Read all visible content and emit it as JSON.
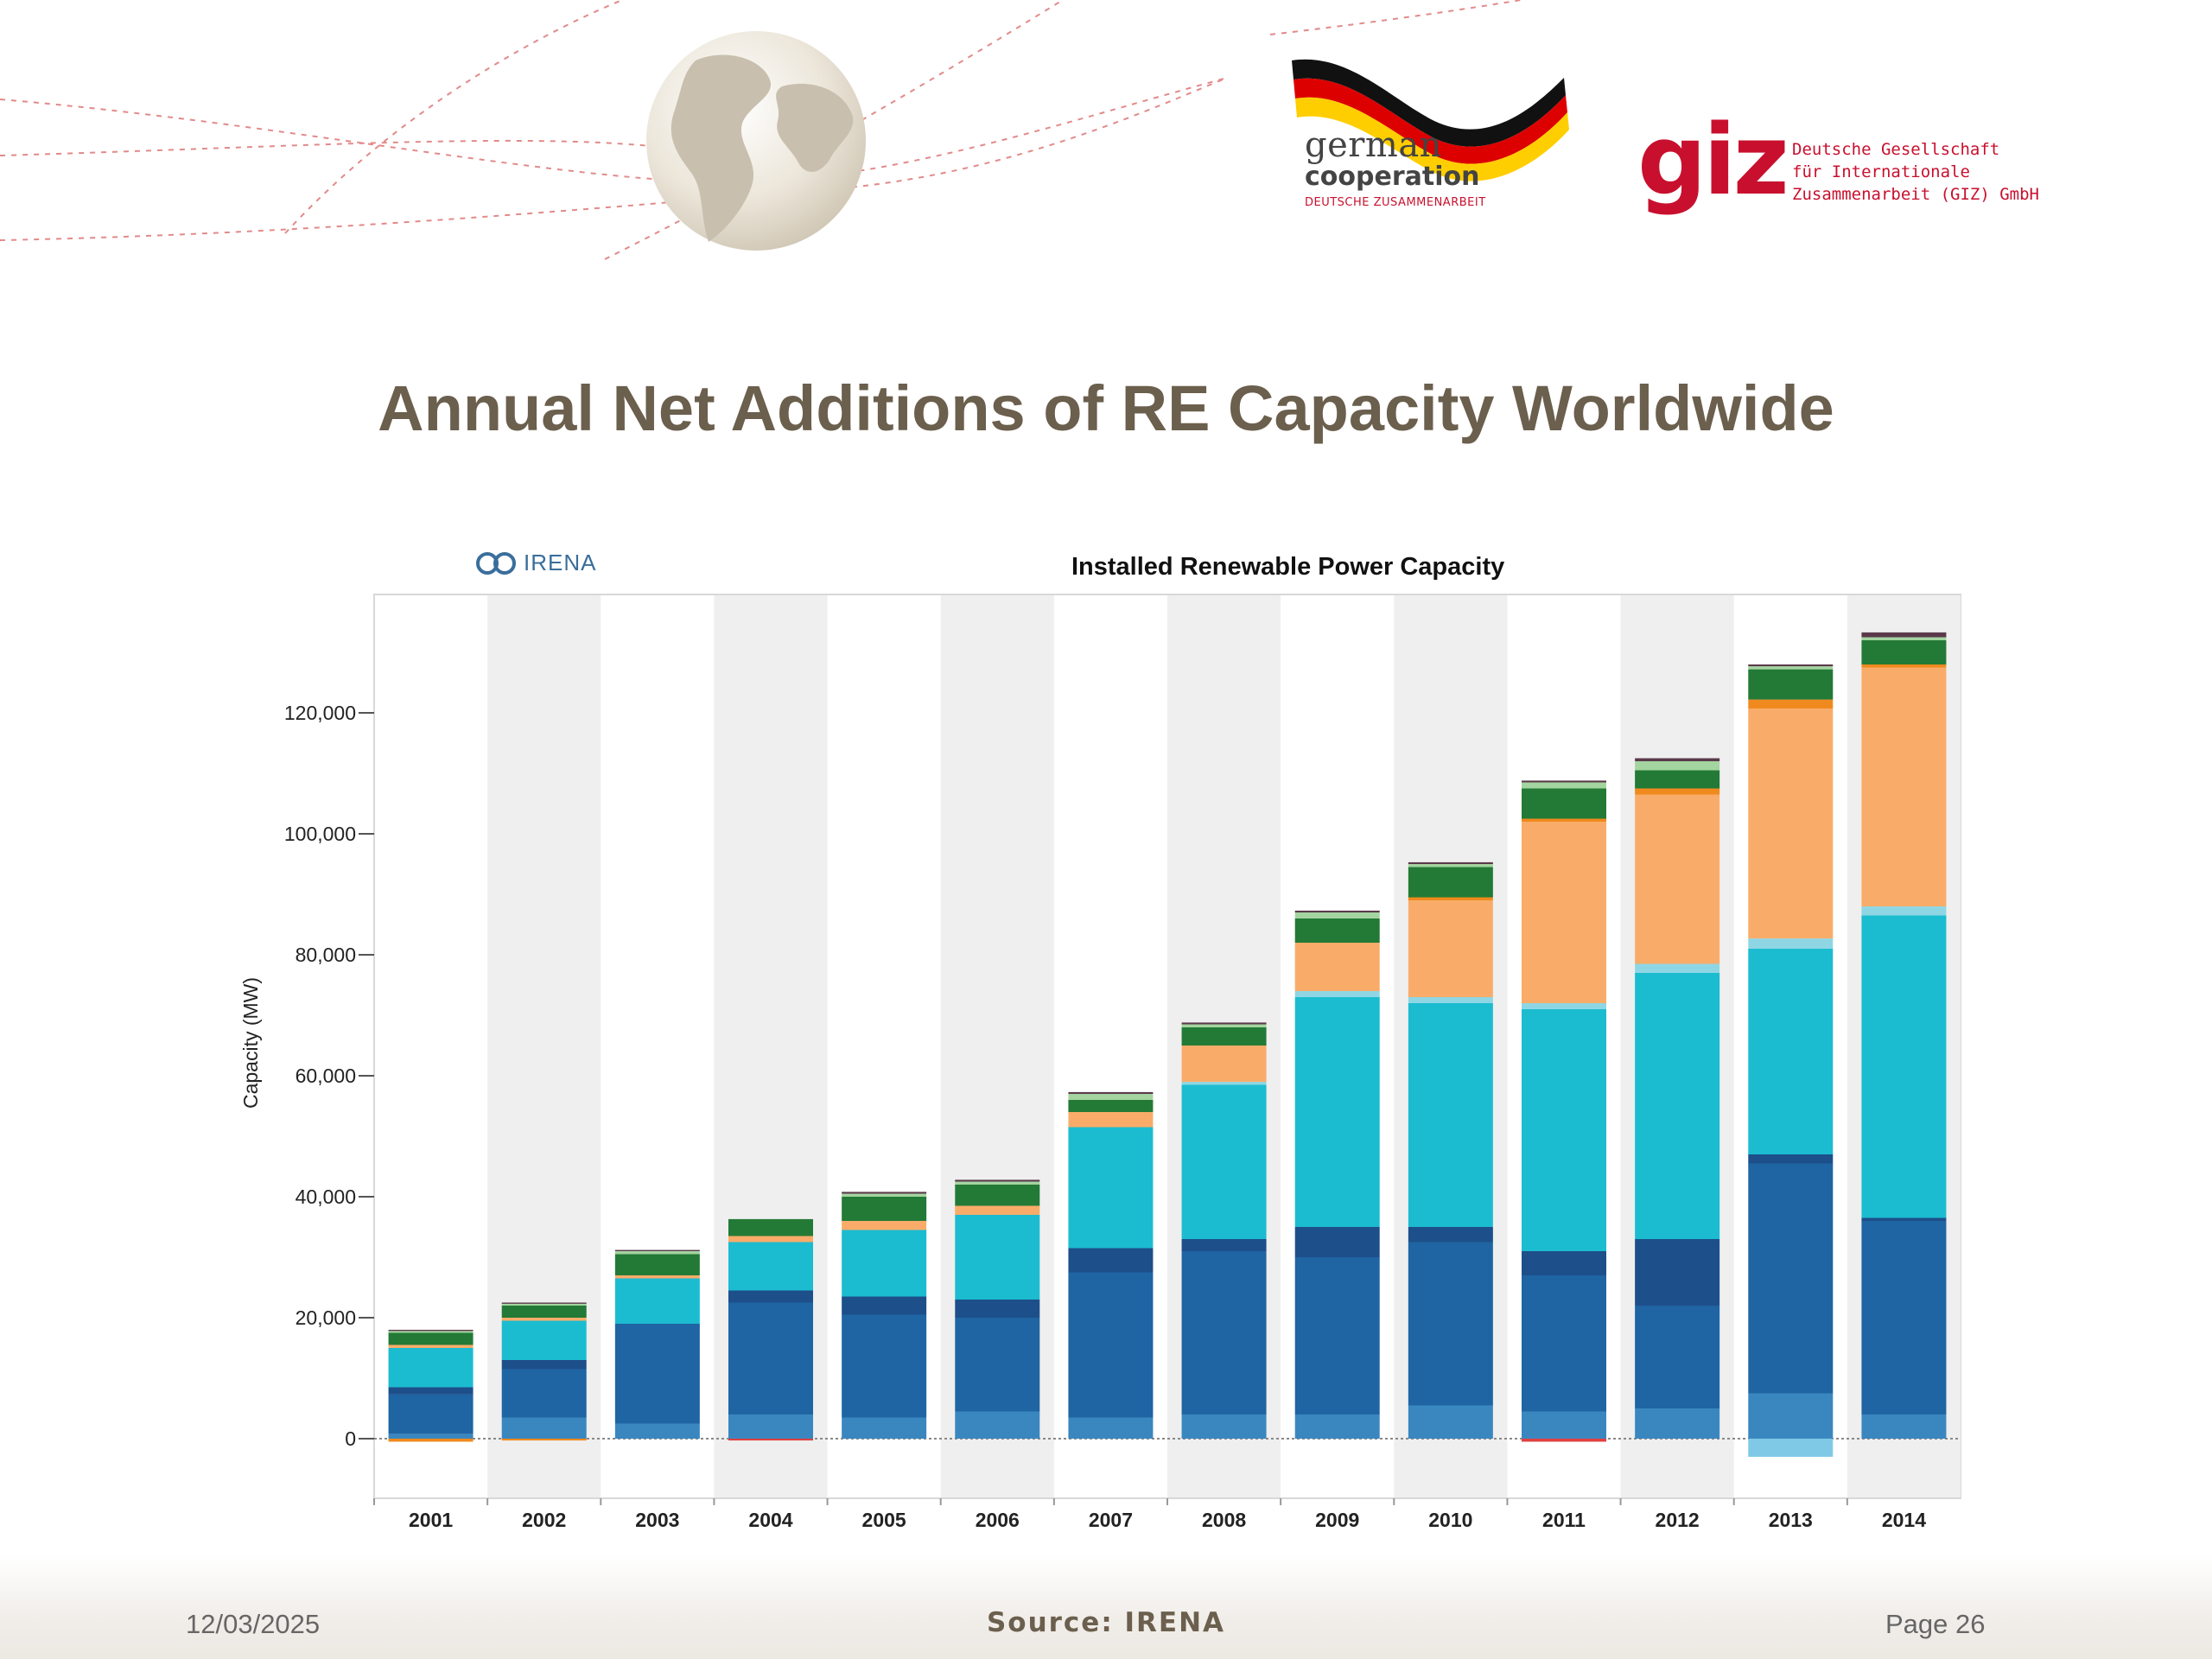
{
  "title": "Annual Net Additions of RE Capacity Worldwide",
  "header": {
    "german_line1": "german",
    "german_line2": "cooperation",
    "german_line3": "DEUTSCHE ZUSAMMENARBEIT",
    "giz_word": "giz",
    "giz_line1": "Deutsche Gesellschaft",
    "giz_line2": "für Internationale",
    "giz_line3": "Zusammenarbeit (GIZ) GmbH"
  },
  "irena_logo_text": "IRENA",
  "footer": {
    "date": "12/03/2025",
    "source": "Source: IRENA",
    "page": "Page 26"
  },
  "colors": {
    "brand_red": "#c8102e",
    "title_brown": "#6b5f4d"
  },
  "chart_data": {
    "type": "bar",
    "stacked": true,
    "title": "Installed Renewable Power Capacity",
    "xlabel": "",
    "ylabel": "Capacity (MW)",
    "ylim": [
      -10000,
      140000
    ],
    "yticks": [
      0,
      20000,
      40000,
      60000,
      80000,
      100000,
      120000
    ],
    "ytick_labels": [
      "0",
      "20,000",
      "40,000",
      "60,000",
      "80,000",
      "100,000",
      "120,000"
    ],
    "categories": [
      "2001",
      "2002",
      "2003",
      "2004",
      "2005",
      "2006",
      "2007",
      "2008",
      "2009",
      "2010",
      "2011",
      "2012",
      "2013",
      "2014"
    ],
    "grid": false,
    "alternating_column_shading": true,
    "series": [
      {
        "color": "#3a87c0",
        "values": [
          800,
          3500,
          2500,
          4000,
          3500,
          4500,
          3500,
          4000,
          4000,
          5500,
          4500,
          5000,
          7500,
          4000
        ]
      },
      {
        "color": "#1f64a3",
        "values": [
          6500,
          8000,
          16500,
          18500,
          17000,
          15500,
          24000,
          27000,
          26000,
          27000,
          22500,
          17000,
          38000,
          32000
        ]
      },
      {
        "color": "#1d4f8a",
        "values": [
          1200,
          1500,
          0,
          2000,
          3000,
          3000,
          4000,
          2000,
          5000,
          2500,
          4000,
          11000,
          1500,
          500
        ]
      },
      {
        "color": "#1bbcd0",
        "values": [
          6500,
          6500,
          7500,
          8000,
          11000,
          14000,
          20000,
          25500,
          38000,
          37000,
          40000,
          44000,
          34000,
          50000
        ]
      },
      {
        "color": "#8fd6e4",
        "values": [
          0,
          0,
          0,
          0,
          0,
          0,
          0,
          500,
          1000,
          1000,
          1000,
          1500,
          1700,
          1500
        ]
      },
      {
        "color": "#f9ac69",
        "values": [
          500,
          500,
          500,
          1000,
          1500,
          1500,
          2500,
          6000,
          8000,
          16000,
          30000,
          28000,
          38000,
          39500
        ]
      },
      {
        "color": "#f08a1e",
        "values": [
          0,
          0,
          0,
          0,
          0,
          0,
          0,
          0,
          0,
          500,
          500,
          1000,
          1500,
          500
        ]
      },
      {
        "color": "#237a36",
        "values": [
          2000,
          2000,
          3500,
          2800,
          4000,
          3500,
          2000,
          3000,
          4000,
          5000,
          5000,
          3000,
          5000,
          4000
        ]
      },
      {
        "color": "#a4d4a0",
        "values": [
          300,
          300,
          500,
          0,
          500,
          500,
          1000,
          500,
          1000,
          500,
          1000,
          1500,
          500,
          500
        ]
      },
      {
        "color": "#5a3a4a",
        "values": [
          200,
          200,
          200,
          0,
          300,
          300,
          300,
          300,
          300,
          300,
          300,
          500,
          300,
          800
        ]
      },
      {
        "color": "#7fc9e6",
        "values": [
          0,
          0,
          0,
          0,
          0,
          0,
          0,
          0,
          0,
          0,
          0,
          0,
          -3000,
          0
        ]
      },
      {
        "color": "#f08a1e",
        "values": [
          -500,
          -300,
          0,
          0,
          0,
          0,
          0,
          0,
          0,
          0,
          0,
          0,
          0,
          0
        ]
      },
      {
        "color": "#e04040",
        "values": [
          0,
          0,
          0,
          -300,
          0,
          0,
          0,
          0,
          0,
          0,
          -500,
          0,
          0,
          0
        ]
      }
    ]
  }
}
